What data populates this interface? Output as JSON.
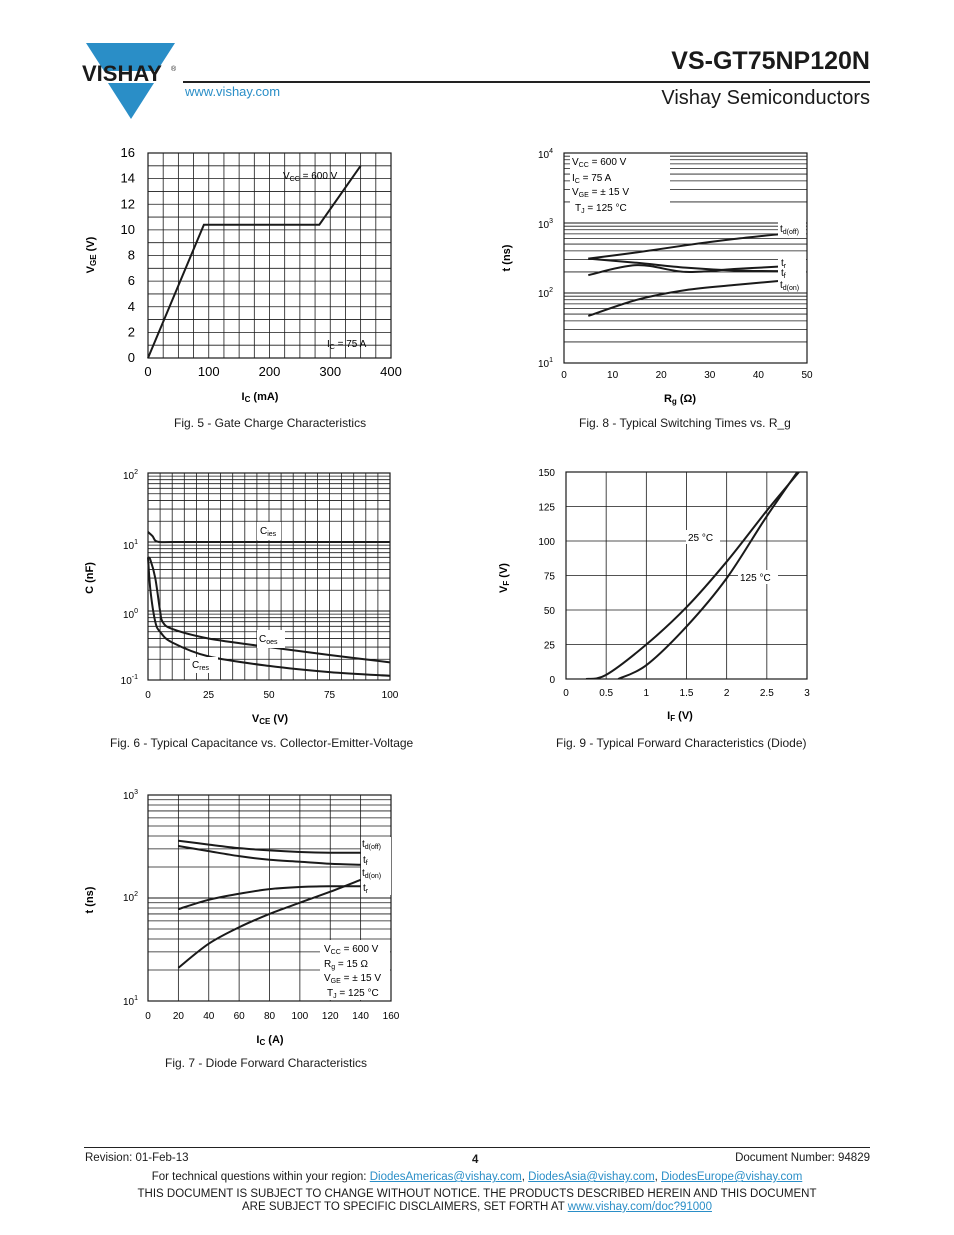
{
  "header": {
    "logo_text": "VISHAY",
    "logo_mark": "®",
    "part_number": "VS-GT75NP120N",
    "website": "www.vishay.com",
    "company": "Vishay Semiconductors"
  },
  "charts": {
    "fig5": {
      "caption": "Fig. 5 - Gate Charge Characteristics",
      "chart_data": {
        "type": "line",
        "xlabel": "I_C (mA)",
        "ylabel": "V_GE (V)",
        "xlim": [
          0,
          400
        ],
        "ylim": [
          0,
          16
        ],
        "x_ticks": [
          0,
          100,
          200,
          300,
          400
        ],
        "y_ticks": [
          0,
          2,
          4,
          6,
          8,
          10,
          12,
          14,
          16
        ],
        "grid": true,
        "annotations": [
          "V_CC = 600 V",
          "I_C = 75 A"
        ],
        "series": [
          {
            "x": [
              0,
              92,
              282,
              350
            ],
            "values": [
              0,
              10.4,
              10.4,
              15
            ]
          }
        ]
      }
    },
    "fig8": {
      "caption": "Fig. 8 - Typical Switching Times vs. R_g",
      "chart_data": {
        "type": "line",
        "yscale": "log",
        "xlabel": "R_g (Ω)",
        "ylabel": "t (ns)",
        "xlim": [
          0,
          50
        ],
        "ylim": [
          10,
          10000
        ],
        "x_ticks": [
          0,
          10,
          20,
          30,
          40,
          50
        ],
        "y_ticks": [
          "10^1",
          "10^2",
          "10^3",
          "10^4"
        ],
        "grid": true,
        "annotations": [
          "V_CC = 600 V",
          "I_C = 75 A",
          "V_GE = ± 15 V",
          "T_J = 125 °C"
        ],
        "series": [
          {
            "name": "t_d(off)",
            "x": [
              5,
              15,
              25,
              35,
              45
            ],
            "values": [
              310,
              380,
              480,
              590,
              700
            ]
          },
          {
            "name": "t_r",
            "x": [
              5,
              15,
              25,
              35,
              45
            ],
            "values": [
              180,
              250,
              200,
              220,
              240
            ]
          },
          {
            "name": "t_f",
            "x": [
              5,
              15,
              25,
              35,
              45
            ],
            "values": [
              310,
              270,
              230,
              210,
              205
            ]
          },
          {
            "name": "t_d(on)",
            "x": [
              5,
              15,
              25,
              35,
              45
            ],
            "values": [
              47,
              80,
              110,
              130,
              150
            ]
          }
        ]
      }
    },
    "fig6": {
      "caption": "Fig. 6 - Typical Capacitance vs. Collector-Emitter-Voltage",
      "chart_data": {
        "type": "line",
        "yscale": "log",
        "xlabel": "V_CE (V)",
        "ylabel": "C (nF)",
        "xlim": [
          0,
          100
        ],
        "ylim": [
          0.1,
          100
        ],
        "x_ticks": [
          0,
          25,
          50,
          75,
          100
        ],
        "y_ticks": [
          "10^-1",
          "10^0",
          "10^1",
          "10^2"
        ],
        "grid": true,
        "series": [
          {
            "name": "C_ies",
            "x": [
              0,
              1,
              2,
              3,
              5,
              10,
              25,
              50,
              75,
              100
            ],
            "values": [
              14,
              13,
              12,
              10.5,
              10,
              10,
              10,
              10,
              10,
              10
            ]
          },
          {
            "name": "C_oes",
            "x": [
              0,
              1,
              3,
              5,
              6,
              10,
              25,
              50,
              75,
              100
            ],
            "values": [
              6,
              5.5,
              3,
              1,
              0.7,
              0.55,
              0.4,
              0.3,
              0.23,
              0.18
            ]
          },
          {
            "name": "C_res",
            "x": [
              0,
              1,
              3,
              5,
              10,
              25,
              50,
              75,
              100
            ],
            "values": [
              6,
              2,
              0.7,
              0.5,
              0.35,
              0.22,
              0.16,
              0.13,
              0.115
            ]
          }
        ]
      }
    },
    "fig9": {
      "caption": "Fig. 9 - Typical Forward Characteristics (Diode)",
      "chart_data": {
        "type": "line",
        "xlabel": "I_F (V)",
        "ylabel": "V_F (V)",
        "xlim": [
          0,
          3
        ],
        "ylim": [
          0,
          150
        ],
        "x_ticks": [
          0,
          0.5,
          1,
          1.5,
          2,
          2.5,
          3
        ],
        "y_ticks": [
          0,
          25,
          50,
          75,
          100,
          125,
          150
        ],
        "grid": true,
        "series": [
          {
            "name": "25 °C",
            "x": [
              0.25,
              0.5,
              1,
              1.5,
              2,
              2.5,
              2.9
            ],
            "values": [
              0,
              3,
              25,
              52,
              85,
              122,
              150
            ]
          },
          {
            "name": "125 °C",
            "x": [
              0.65,
              1,
              1.5,
              2,
              2.5,
              3
            ],
            "values": [
              0,
              10,
              38,
              73,
              118,
              160
            ]
          }
        ]
      }
    },
    "fig7": {
      "caption": "Fig. 7 - Diode Forward Characteristics",
      "chart_data": {
        "type": "line",
        "yscale": "log",
        "xlabel": "I_C (A)",
        "ylabel": "t (ns)",
        "xlim": [
          0,
          160
        ],
        "ylim": [
          10,
          1000
        ],
        "x_ticks": [
          0,
          20,
          40,
          60,
          80,
          100,
          120,
          140,
          160
        ],
        "y_ticks": [
          "10^1",
          "10^2",
          "10^3"
        ],
        "grid": true,
        "annotations": [
          "V_CC = 600 V",
          "R_g = 15 Ω",
          "V_GE = ± 15 V",
          "T_J = 125 °C"
        ],
        "series": [
          {
            "name": "t_d(off)",
            "x": [
              20,
              40,
              60,
              80,
              100,
              120,
              140
            ],
            "values": [
              360,
              330,
              305,
              290,
              280,
              275,
              275
            ]
          },
          {
            "name": "t_f",
            "x": [
              20,
              40,
              60,
              80,
              100,
              120,
              140
            ],
            "values": [
              320,
              285,
              255,
              235,
              225,
              215,
              210
            ]
          },
          {
            "name": "t_d(on)",
            "x": [
              20,
              40,
              60,
              80,
              100,
              120,
              140
            ],
            "values": [
              78,
              96,
              110,
              122,
              128,
              130,
              130
            ]
          },
          {
            "name": "t_r",
            "x": [
              20,
              40,
              60,
              80,
              100,
              120,
              140
            ],
            "values": [
              21,
              36,
              52,
              70,
              90,
              115,
              150
            ]
          }
        ]
      }
    }
  },
  "footer": {
    "revision": "Revision: 01-Feb-13",
    "page": "4",
    "document_number": "Document Number: 94829",
    "contact_prefix": "For technical questions within your region: ",
    "email_americas": "DiodesAmericas@vishay.com",
    "email_asia": "DiodesAsia@vishay.com",
    "email_europe": "DiodesEurope@vishay.com",
    "sep": ", ",
    "disclaimer_line1": "THIS DOCUMENT IS SUBJECT TO CHANGE WITHOUT NOTICE. THE PRODUCTS DESCRIBED HEREIN AND THIS DOCUMENT",
    "disclaimer_line2": "ARE SUBJECT TO SPECIFIC DISCLAIMERS, SET FORTH AT ",
    "disclaimer_link": "www.vishay.com/doc?91000"
  },
  "colors": {
    "link": "#2a8ec7",
    "logo_blue": "#2a8ec7",
    "curve": "#1a1a1a"
  }
}
